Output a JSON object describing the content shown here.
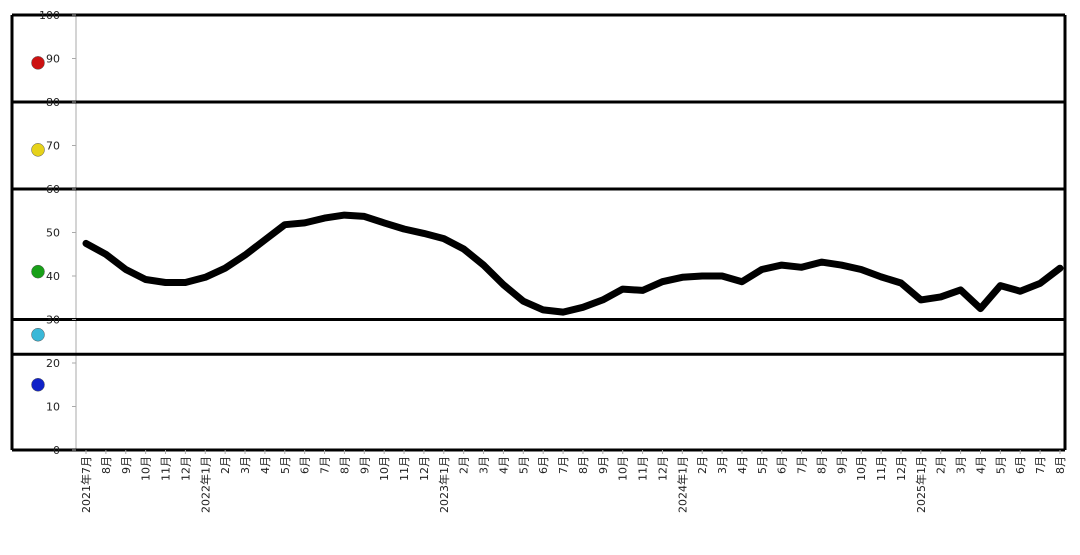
{
  "chart_data": {
    "type": "line",
    "categories": [
      "2021年7月",
      "8月",
      "9月",
      "10月",
      "11月",
      "12月",
      "2022年1月",
      "2月",
      "3月",
      "4月",
      "5月",
      "6月",
      "7月",
      "8月",
      "9月",
      "10月",
      "11月",
      "12月",
      "2023年1月",
      "2月",
      "3月",
      "4月",
      "5月",
      "6月",
      "7月",
      "8月",
      "9月",
      "10月",
      "11月",
      "12月",
      "2024年1月",
      "2月",
      "3月",
      "4月",
      "5月",
      "6月",
      "7月",
      "8月",
      "9月",
      "10月",
      "11月",
      "12月",
      "2025年1月",
      "2月",
      "3月",
      "4月",
      "5月",
      "6月",
      "7月",
      "8月"
    ],
    "series": [
      {
        "color": "#000000",
        "values": [
          47.5,
          45,
          41.5,
          39.2,
          38.5,
          38.5,
          39.7,
          41.8,
          44.8,
          48.3,
          51.8,
          52.2,
          53.3,
          54,
          53.7,
          52.2,
          50.8,
          49.8,
          48.6,
          46.2,
          42.5,
          38,
          34.2,
          32.2,
          31.7,
          32.8,
          34.5,
          37,
          36.7,
          38.7,
          39.7,
          40,
          40,
          38.7,
          41.5,
          42.5,
          42,
          43.2,
          42.5,
          41.5,
          39.8,
          38.4,
          34.5,
          35.2,
          36.8,
          32.5,
          37.8,
          36.5,
          38.3,
          41.8
        ]
      }
    ],
    "ylim": [
      0,
      100
    ],
    "yticks": [
      0,
      10,
      20,
      30,
      40,
      50,
      60,
      70,
      80,
      90,
      100
    ],
    "zone_lines": [
      100,
      80,
      60,
      30,
      22
    ],
    "markers": [
      {
        "value": 89,
        "color": "#cc1111"
      },
      {
        "value": 69,
        "color": "#e6d21a"
      },
      {
        "value": 41,
        "color": "#18a018"
      },
      {
        "value": 26.5,
        "color": "#3ab8d8"
      },
      {
        "value": 15,
        "color": "#1022c8"
      }
    ]
  }
}
